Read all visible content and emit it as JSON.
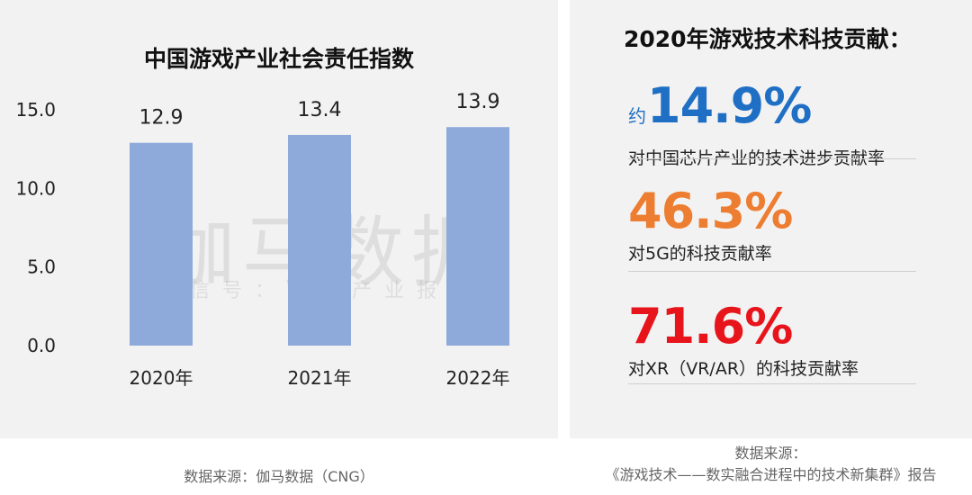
{
  "left": {
    "title": "中国游戏产业社会责任指数",
    "source": "数据来源：伽马数据（CNG）",
    "watermark_main": "伽马数据",
    "watermark_sub": "微信号：游戏产业报告"
  },
  "chart_data": {
    "type": "bar",
    "title": "中国游戏产业社会责任指数",
    "categories": [
      "2020年",
      "2021年",
      "2022年"
    ],
    "values": [
      12.9,
      13.4,
      13.9
    ],
    "value_labels": [
      "12.9",
      "13.4",
      "13.9"
    ],
    "yticks": [
      "0.0",
      "5.0",
      "10.0",
      "15.0"
    ],
    "ylim": [
      0,
      15
    ],
    "grid": false,
    "bar_color": "#8eaadb"
  },
  "right": {
    "title": "2020年游戏技术科技贡献：",
    "stats": [
      {
        "prefix": "约",
        "value": "14.9%",
        "desc": "对中国芯片产业的技术进步贡献率",
        "color": "#1f6fc5"
      },
      {
        "prefix": "",
        "value": "46.3%",
        "desc": "对5G的科技贡献率",
        "color": "#ed7d31"
      },
      {
        "prefix": "",
        "value": "71.6%",
        "desc": "对XR（VR/AR）的科技贡献率",
        "color": "#e8141c"
      }
    ],
    "source_line1": "数据来源：",
    "source_line2": "《游戏技术——数实融合进程中的技术新集群》报告"
  }
}
